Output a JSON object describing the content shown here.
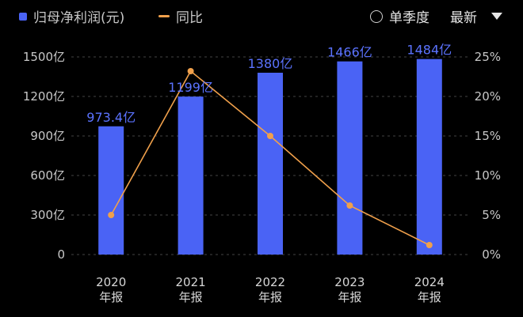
{
  "legend": {
    "bar_label": "归母净利润(元)",
    "line_label": "同比",
    "bar_color": "#4a63f5",
    "line_color": "#f0a04b"
  },
  "controls": {
    "single_quarter_label": "单季度",
    "latest_label": "最新"
  },
  "chart_data": {
    "type": "bar",
    "categories": [
      "2020\n年报",
      "2021\n年报",
      "2022\n年报",
      "2023\n年报",
      "2024\n年报"
    ],
    "series": [
      {
        "name": "归母净利润(元)",
        "type": "bar",
        "axis": "left",
        "values": [
          973.4,
          1199,
          1380,
          1466,
          1484
        ],
        "data_labels": [
          "973.4亿",
          "1199亿",
          "1380亿",
          "1466亿",
          "1484亿"
        ]
      },
      {
        "name": "同比",
        "type": "line",
        "axis": "right",
        "values": [
          5,
          23.2,
          15,
          6.2,
          1.2
        ]
      }
    ],
    "y_left": {
      "range": [
        0,
        1500
      ],
      "ticks": [
        0,
        300,
        600,
        900,
        1200,
        1500
      ],
      "tick_labels": [
        "0",
        "300亿",
        "600亿",
        "900亿",
        "1200亿",
        "1500亿"
      ]
    },
    "y_right": {
      "range": [
        0,
        25
      ],
      "ticks": [
        0,
        5,
        10,
        15,
        20,
        25
      ],
      "tick_labels": [
        "0%",
        "5%",
        "10%",
        "15%",
        "20%",
        "25%"
      ]
    },
    "grid": "horizontal-dashed",
    "legend": "top-left"
  }
}
